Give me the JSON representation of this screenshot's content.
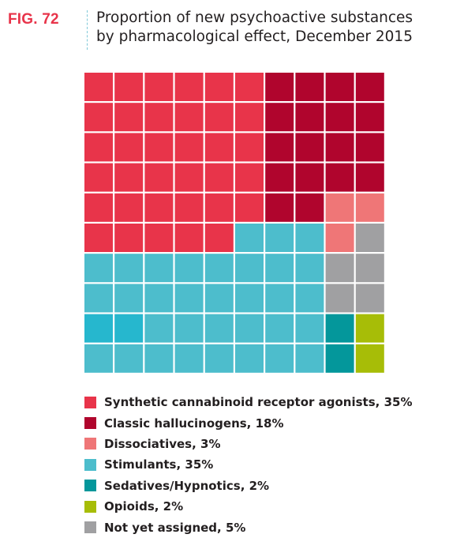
{
  "figure_label": "FIG. 72",
  "title_line1": "Proportion of new psychoactive substances",
  "title_line2": "by pharmacological effect, December 2015",
  "chart_data": {
    "type": "waffle",
    "grid": {
      "rows": 10,
      "cols": 10
    },
    "categories": [
      {
        "key": "scra",
        "label": "Synthetic cannabinoid receptor agonists, 35%",
        "value": 35,
        "color": "#e8344a"
      },
      {
        "key": "halluc",
        "label": "Classic hallucinogens, 18%",
        "value": 18,
        "color": "#b0052d"
      },
      {
        "key": "dissoc",
        "label": "Dissociatives, 3%",
        "value": 3,
        "color": "#ef7677"
      },
      {
        "key": "stim",
        "label": "Stimulants, 35%",
        "value": 35,
        "color": "#4dbdcc"
      },
      {
        "key": "sedat",
        "label": "Sedatives/Hypnotics, 2%",
        "value": 2,
        "color": "#04979b"
      },
      {
        "key": "opioid",
        "label": "Opioids, 2%",
        "value": 2,
        "color": "#a7bd07"
      },
      {
        "key": "unassigned",
        "label": "Not yet assigned, 5%",
        "value": 5,
        "color": "#a0a0a2"
      }
    ],
    "accent_colors": {
      "stimulants_dark": "#26b7ce"
    },
    "cells": [
      [
        "scra",
        "scra",
        "scra",
        "scra",
        "scra",
        "scra",
        "halluc",
        "halluc",
        "halluc",
        "halluc"
      ],
      [
        "scra",
        "scra",
        "scra",
        "scra",
        "scra",
        "scra",
        "halluc",
        "halluc",
        "halluc",
        "halluc"
      ],
      [
        "scra",
        "scra",
        "scra",
        "scra",
        "scra",
        "scra",
        "halluc",
        "halluc",
        "halluc",
        "halluc"
      ],
      [
        "scra",
        "scra",
        "scra",
        "scra",
        "scra",
        "scra",
        "halluc",
        "halluc",
        "halluc",
        "halluc"
      ],
      [
        "scra",
        "scra",
        "scra",
        "scra",
        "scra",
        "scra",
        "halluc",
        "halluc",
        "dissoc",
        "dissoc"
      ],
      [
        "scra",
        "scra",
        "scra",
        "scra",
        "scra",
        "stim",
        "stim",
        "stim",
        "dissoc",
        "unassigned"
      ],
      [
        "stim",
        "stim",
        "stim",
        "stim",
        "stim",
        "stim",
        "stim",
        "stim",
        "unassigned",
        "unassigned"
      ],
      [
        "stim",
        "stim",
        "stim",
        "stim",
        "stim",
        "stim",
        "stim",
        "stim",
        "unassigned",
        "unassigned"
      ],
      [
        "stim_dark",
        "stim_dark",
        "stim",
        "stim",
        "stim",
        "stim",
        "stim",
        "stim",
        "sedat",
        "opioid"
      ],
      [
        "stim",
        "stim",
        "stim",
        "stim",
        "stim",
        "stim",
        "stim",
        "stim",
        "sedat",
        "opioid"
      ]
    ]
  }
}
